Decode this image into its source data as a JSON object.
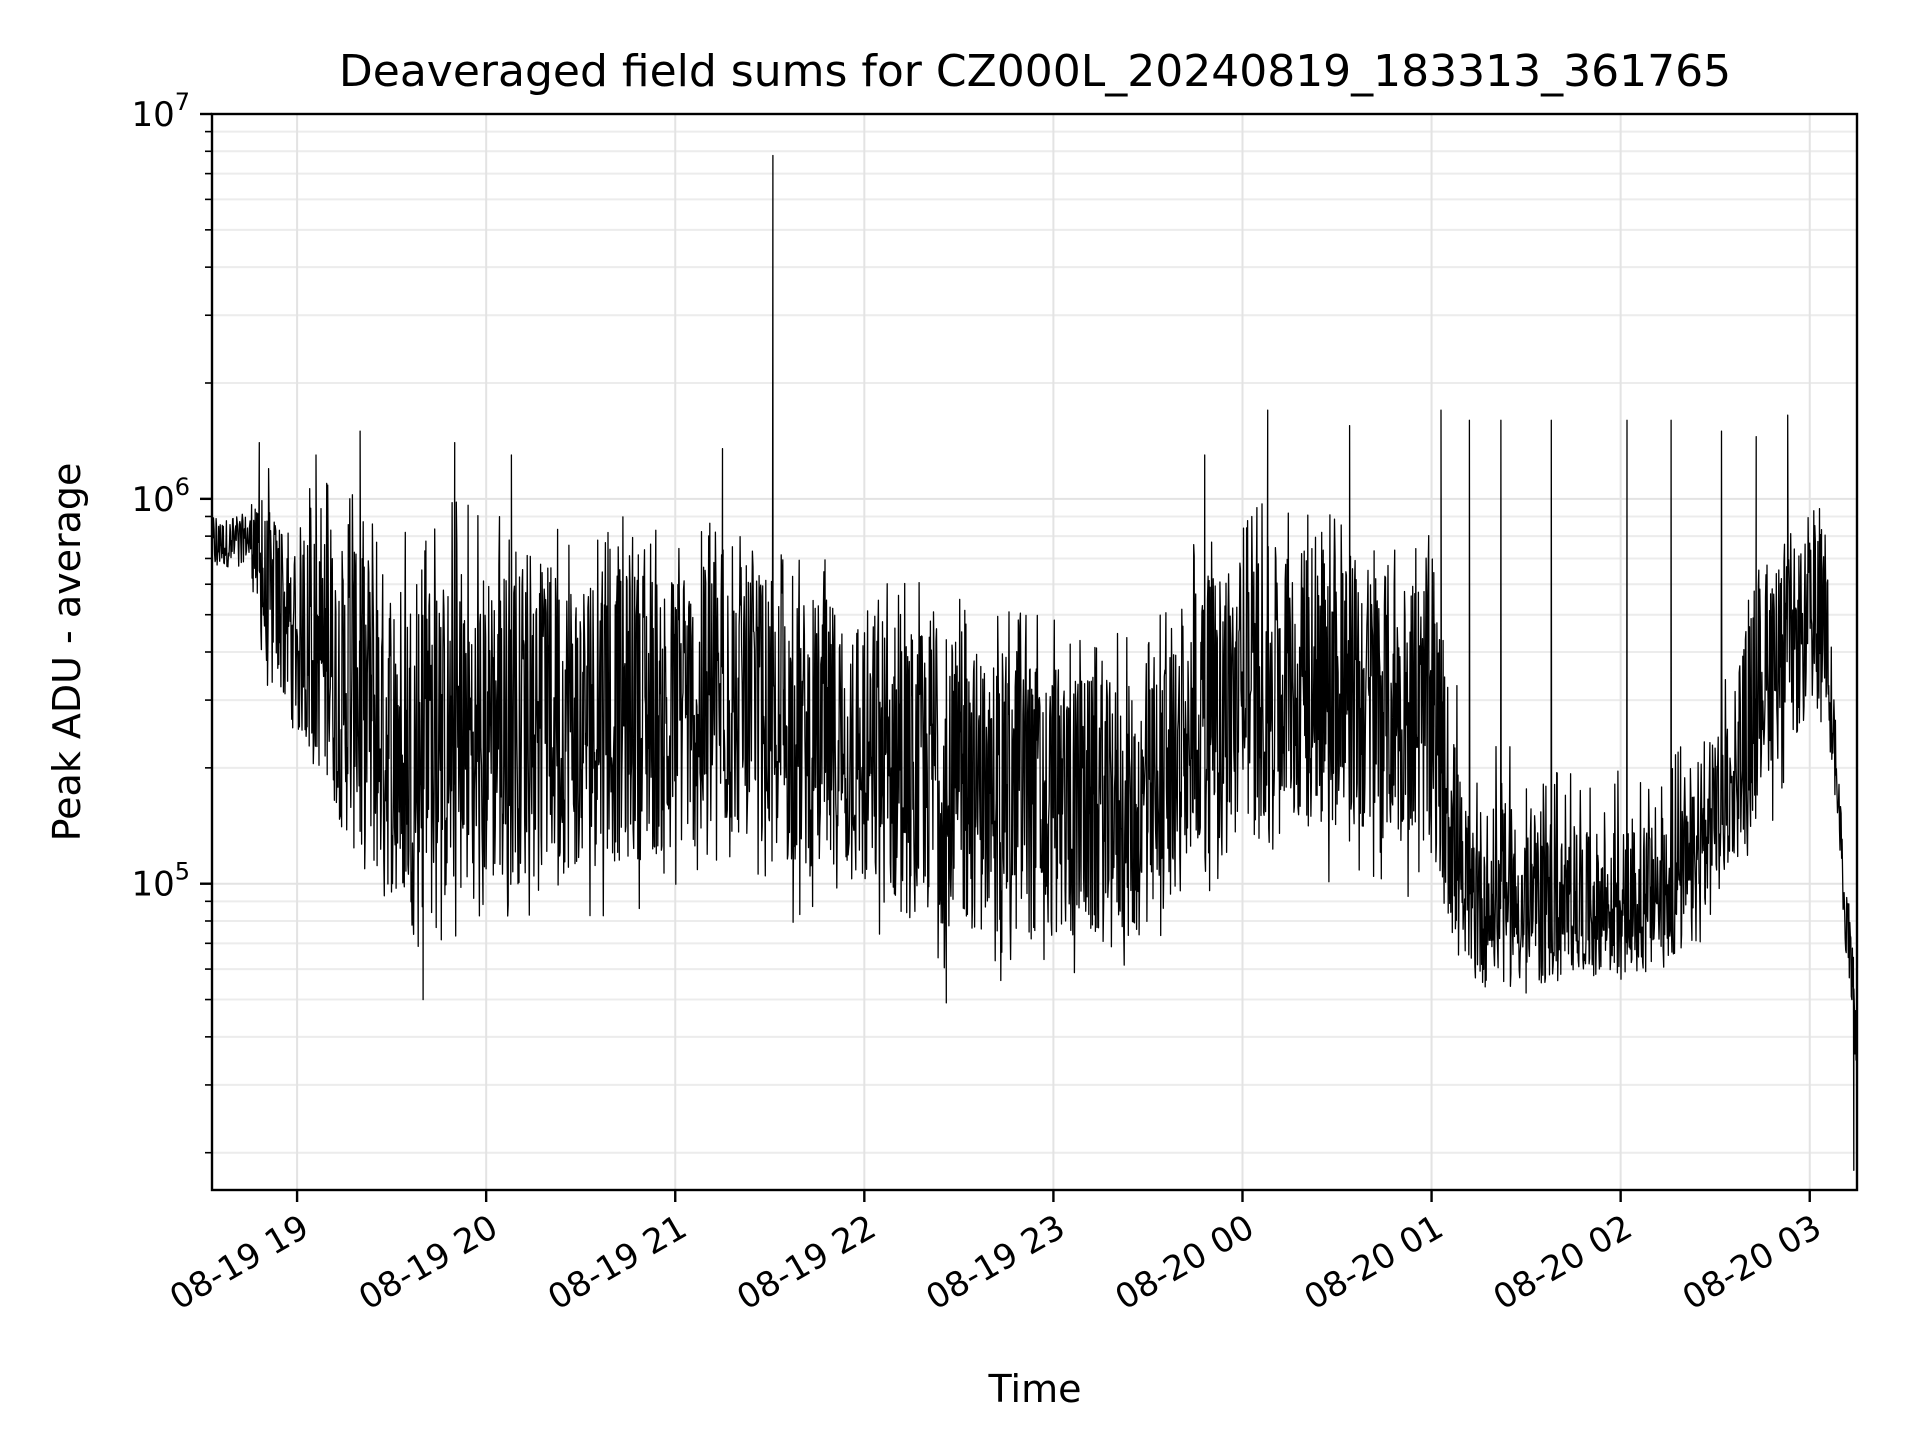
{
  "chart_data": {
    "type": "line",
    "title": "Deaveraged field sums for CZ000L_20240819_183313_361765",
    "xlabel": "Time",
    "ylabel": "Peak ADU - average",
    "yscale": "log",
    "ylim": [
      16000,
      10000000
    ],
    "xlim": [
      "2024-08-19 18:33",
      "2024-08-20 03:15"
    ],
    "grid": true,
    "x_ticks": [
      {
        "t": "2024-08-19 19:00",
        "label": "08-19 19"
      },
      {
        "t": "2024-08-19 20:00",
        "label": "08-19 20"
      },
      {
        "t": "2024-08-19 21:00",
        "label": "08-19 21"
      },
      {
        "t": "2024-08-19 22:00",
        "label": "08-19 22"
      },
      {
        "t": "2024-08-19 23:00",
        "label": "08-19 23"
      },
      {
        "t": "2024-08-20 00:00",
        "label": "08-20 00"
      },
      {
        "t": "2024-08-20 01:00",
        "label": "08-20 01"
      },
      {
        "t": "2024-08-20 02:00",
        "label": "08-20 02"
      },
      {
        "t": "2024-08-20 03:00",
        "label": "08-20 03"
      }
    ],
    "y_ticks": [
      {
        "value": 100000,
        "base": "10",
        "exp": "5"
      },
      {
        "value": 1000000,
        "base": "10",
        "exp": "6"
      },
      {
        "value": 10000000,
        "base": "10",
        "exp": "7"
      }
    ],
    "series": [
      {
        "color": "#000000",
        "envelope": [
          {
            "t": "2024-08-19 18:33",
            "low": 600000,
            "high": 900000,
            "mid": 750000
          },
          {
            "t": "2024-08-19 18:45",
            "low": 650000,
            "high": 950000,
            "mid": 800000
          },
          {
            "t": "2024-08-19 18:50",
            "low": 300000,
            "high": 1250000,
            "mid": 550000
          },
          {
            "t": "2024-08-19 19:05",
            "low": 200000,
            "high": 1250000,
            "mid": 420000
          },
          {
            "t": "2024-08-19 19:20",
            "low": 90000,
            "high": 1100000,
            "mid": 280000
          },
          {
            "t": "2024-08-19 19:40",
            "low": 65000,
            "high": 1000000,
            "mid": 220000
          },
          {
            "t": "2024-08-19 20:00",
            "low": 75000,
            "high": 1000000,
            "mid": 250000
          },
          {
            "t": "2024-08-19 20:30",
            "low": 80000,
            "high": 900000,
            "mid": 270000
          },
          {
            "t": "2024-08-19 21:00",
            "low": 90000,
            "high": 900000,
            "mid": 280000
          },
          {
            "t": "2024-08-19 21:25",
            "low": 110000,
            "high": 950000,
            "mid": 300000
          },
          {
            "t": "2024-08-19 21:35",
            "low": 80000,
            "high": 700000,
            "mid": 250000
          },
          {
            "t": "2024-08-19 22:00",
            "low": 65000,
            "high": 700000,
            "mid": 220000
          },
          {
            "t": "2024-08-19 22:30",
            "low": 55000,
            "high": 550000,
            "mid": 180000
          },
          {
            "t": "2024-08-19 23:00",
            "low": 55000,
            "high": 500000,
            "mid": 160000
          },
          {
            "t": "2024-08-19 23:30",
            "low": 60000,
            "high": 450000,
            "mid": 150000
          },
          {
            "t": "2024-08-19 23:45",
            "low": 90000,
            "high": 800000,
            "mid": 250000
          },
          {
            "t": "2024-08-20 00:00",
            "low": 110000,
            "high": 1000000,
            "mid": 330000
          },
          {
            "t": "2024-08-20 00:30",
            "low": 100000,
            "high": 950000,
            "mid": 320000
          },
          {
            "t": "2024-08-20 01:00",
            "low": 90000,
            "high": 800000,
            "mid": 280000
          },
          {
            "t": "2024-08-20 01:10",
            "low": 65000,
            "high": 300000,
            "mid": 95000
          },
          {
            "t": "2024-08-20 01:40",
            "low": 60000,
            "high": 200000,
            "mid": 85000
          },
          {
            "t": "2024-08-20 02:10",
            "low": 60000,
            "high": 200000,
            "mid": 90000
          },
          {
            "t": "2024-08-20 02:25",
            "low": 70000,
            "high": 250000,
            "mid": 110000
          },
          {
            "t": "2024-08-20 02:45",
            "low": 130000,
            "high": 700000,
            "mid": 350000
          },
          {
            "t": "2024-08-20 03:05",
            "low": 250000,
            "high": 1000000,
            "mid": 500000
          },
          {
            "t": "2024-08-20 03:09",
            "low": 120000,
            "high": 200000,
            "mid": 160000
          },
          {
            "t": "2024-08-20 03:15",
            "low": 22000,
            "high": 60000,
            "mid": 35000
          }
        ],
        "spikes": [
          {
            "t": "2024-08-19 18:48",
            "value": 1400000
          },
          {
            "t": "2024-08-19 19:06",
            "value": 1300000
          },
          {
            "t": "2024-08-19 19:20",
            "value": 1500000
          },
          {
            "t": "2024-08-19 19:50",
            "value": 1400000
          },
          {
            "t": "2024-08-19 20:08",
            "value": 1300000
          },
          {
            "t": "2024-08-19 21:15",
            "value": 1350000
          },
          {
            "t": "2024-08-19 21:31",
            "value": 7800000
          },
          {
            "t": "2024-08-19 21:31",
            "value": 4000000
          },
          {
            "t": "2024-08-19 23:48",
            "value": 1300000
          },
          {
            "t": "2024-08-20 00:08",
            "value": 1700000
          },
          {
            "t": "2024-08-20 00:34",
            "value": 1550000
          },
          {
            "t": "2024-08-20 01:03",
            "value": 1700000
          },
          {
            "t": "2024-08-20 01:12",
            "value": 1600000
          },
          {
            "t": "2024-08-20 01:22",
            "value": 1600000
          },
          {
            "t": "2024-08-20 01:38",
            "value": 1600000
          },
          {
            "t": "2024-08-20 02:02",
            "value": 1600000
          },
          {
            "t": "2024-08-20 02:16",
            "value": 1600000
          },
          {
            "t": "2024-08-20 02:32",
            "value": 1500000
          },
          {
            "t": "2024-08-20 02:53",
            "value": 1650000
          },
          {
            "t": "2024-08-20 02:43",
            "value": 1450000
          },
          {
            "t": "2024-08-19 19:40",
            "value": 50000
          },
          {
            "t": "2024-08-19 22:26",
            "value": 49000
          },
          {
            "t": "2024-08-20 01:30",
            "value": 52000
          },
          {
            "t": "2024-08-20 03:14",
            "value": 18000
          }
        ]
      }
    ]
  }
}
